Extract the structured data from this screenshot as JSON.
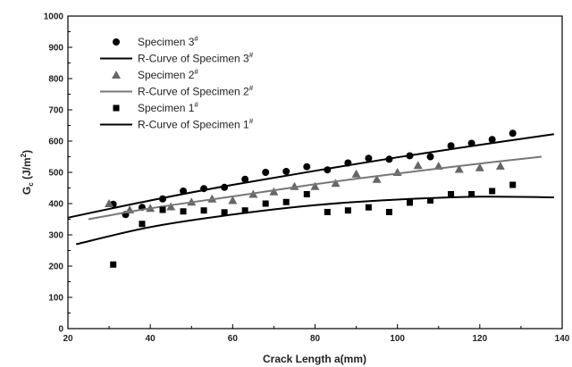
{
  "chart_data": {
    "type": "scatter",
    "xlabel": "Crack Length a(mm)",
    "ylabel": "G",
    "ylabel_sub": "c",
    "ylabel_unit_prefix": " (J/m",
    "ylabel_unit_sup": "2",
    "ylabel_unit_suffix": ")",
    "xlim": [
      20,
      140
    ],
    "ylim": [
      0,
      1000
    ],
    "x_ticks": [
      20,
      40,
      60,
      80,
      100,
      120,
      140
    ],
    "y_ticks": [
      0,
      100,
      200,
      300,
      400,
      500,
      600,
      700,
      800,
      900,
      1000
    ],
    "grid": false,
    "legend_position": "top-left",
    "series": [
      {
        "name": "Specimen 3",
        "name_sup": "#",
        "kind": "points",
        "marker": "circle",
        "color": "#000000",
        "x": [
          31,
          34,
          38,
          43,
          48,
          53,
          58,
          63,
          68,
          73,
          78,
          83,
          88,
          93,
          98,
          103,
          108,
          113,
          118,
          123,
          128
        ],
        "y": [
          398,
          365,
          388,
          415,
          440,
          448,
          452,
          478,
          500,
          503,
          518,
          508,
          530,
          545,
          542,
          553,
          550,
          585,
          593,
          605,
          625
        ]
      },
      {
        "name": "R-Curve of Specimen 3",
        "name_sup": "#",
        "kind": "line",
        "color": "#000000",
        "x": [
          20,
          40,
          60,
          80,
          100,
          120,
          138
        ],
        "y": [
          355,
          410,
          460,
          505,
          548,
          588,
          622
        ]
      },
      {
        "name": "Specimen 2",
        "name_sup": "#",
        "kind": "points",
        "marker": "triangle",
        "color": "#666666",
        "x": [
          30,
          35,
          40,
          45,
          50,
          55,
          60,
          65,
          70,
          75,
          80,
          85,
          90,
          95,
          100,
          105,
          110,
          115,
          120,
          125
        ],
        "y": [
          400,
          380,
          385,
          390,
          405,
          415,
          410,
          430,
          438,
          455,
          455,
          465,
          495,
          478,
          500,
          522,
          520,
          510,
          515,
          520
        ]
      },
      {
        "name": "R-Curve of Specimen 2",
        "name_sup": "#",
        "kind": "line",
        "color": "#777777",
        "x": [
          25,
          40,
          60,
          80,
          100,
          120,
          135
        ],
        "y": [
          350,
          385,
          423,
          462,
          496,
          528,
          550
        ]
      },
      {
        "name": "Specimen 1",
        "name_sup": "#",
        "kind": "points",
        "marker": "square",
        "color": "#000000",
        "x": [
          31,
          38,
          43,
          48,
          53,
          58,
          63,
          68,
          73,
          78,
          83,
          88,
          93,
          98,
          103,
          108,
          113,
          118,
          123,
          128
        ],
        "y": [
          205,
          335,
          380,
          375,
          378,
          372,
          378,
          400,
          405,
          430,
          373,
          378,
          388,
          373,
          403,
          410,
          430,
          430,
          440,
          460
        ]
      },
      {
        "name": "R-Curve of Specimen 1",
        "name_sup": "#",
        "kind": "line",
        "color": "#000000",
        "x": [
          22,
          40,
          60,
          80,
          100,
          120,
          138
        ],
        "y": [
          270,
          325,
          365,
          395,
          413,
          422,
          420
        ]
      }
    ]
  }
}
